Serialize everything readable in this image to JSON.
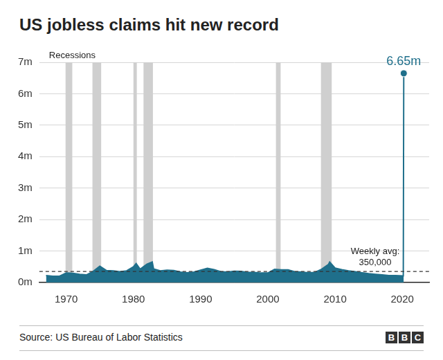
{
  "chart_data": {
    "type": "area",
    "title": "US jobless claims hit new record",
    "x": [
      1967,
      1968,
      1969,
      1970,
      1971,
      1972,
      1973,
      1974,
      1975,
      1976,
      1977,
      1978,
      1979,
      1980,
      1980.4,
      1981,
      1982,
      1982.8,
      1983,
      1984,
      1985,
      1986,
      1987,
      1988,
      1989,
      1990,
      1991,
      1992,
      1993,
      1994,
      1995,
      1996,
      1997,
      1998,
      1999,
      2000,
      2001,
      2002,
      2003,
      2004,
      2005,
      2006,
      2007,
      2008,
      2009,
      2009.2,
      2010,
      2011,
      2012,
      2013,
      2014,
      2015,
      2016,
      2017,
      2018,
      2019,
      2020.15,
      2020.22
    ],
    "values": [
      0.22,
      0.2,
      0.2,
      0.3,
      0.29,
      0.26,
      0.24,
      0.35,
      0.52,
      0.38,
      0.37,
      0.34,
      0.37,
      0.5,
      0.6,
      0.42,
      0.58,
      0.65,
      0.43,
      0.37,
      0.39,
      0.38,
      0.33,
      0.31,
      0.33,
      0.39,
      0.45,
      0.41,
      0.34,
      0.33,
      0.36,
      0.35,
      0.32,
      0.32,
      0.3,
      0.3,
      0.42,
      0.4,
      0.4,
      0.34,
      0.33,
      0.31,
      0.32,
      0.42,
      0.57,
      0.65,
      0.46,
      0.41,
      0.37,
      0.34,
      0.31,
      0.28,
      0.26,
      0.24,
      0.22,
      0.22,
      0.21,
      6.65
    ],
    "color": "#1f6f8b",
    "marker": "circle",
    "xlim": [
      1966,
      2024
    ],
    "xticks": [
      1970,
      1980,
      1990,
      2000,
      2010,
      2020
    ],
    "ylim": [
      0,
      7
    ],
    "yticks": [
      {
        "value": 0,
        "label": "0m"
      },
      {
        "value": 1,
        "label": "1m"
      },
      {
        "value": 2,
        "label": "2m"
      },
      {
        "value": 3,
        "label": "3m"
      },
      {
        "value": 4,
        "label": "4m"
      },
      {
        "value": 5,
        "label": "5m"
      },
      {
        "value": 6,
        "label": "6m"
      },
      {
        "value": 7,
        "label": "7m"
      }
    ],
    "grid": true,
    "recessions_label": "Recessions",
    "recessions": [
      {
        "start": 1969.9,
        "end": 1970.9
      },
      {
        "start": 1973.9,
        "end": 1975.2
      },
      {
        "start": 1980.0,
        "end": 1980.5
      },
      {
        "start": 1981.5,
        "end": 1982.9
      },
      {
        "start": 2001.2,
        "end": 2001.9
      },
      {
        "start": 2007.9,
        "end": 2009.5
      }
    ],
    "reference_line": {
      "value": 0.35,
      "label": "Weekly avg: 350,000",
      "line_style": "dashed"
    },
    "annotations": [
      {
        "x": 2020.22,
        "y": 6.65,
        "label": "6.65m"
      }
    ],
    "source": "Source: US Bureau of Labor Statistics",
    "logo": "BBC"
  }
}
